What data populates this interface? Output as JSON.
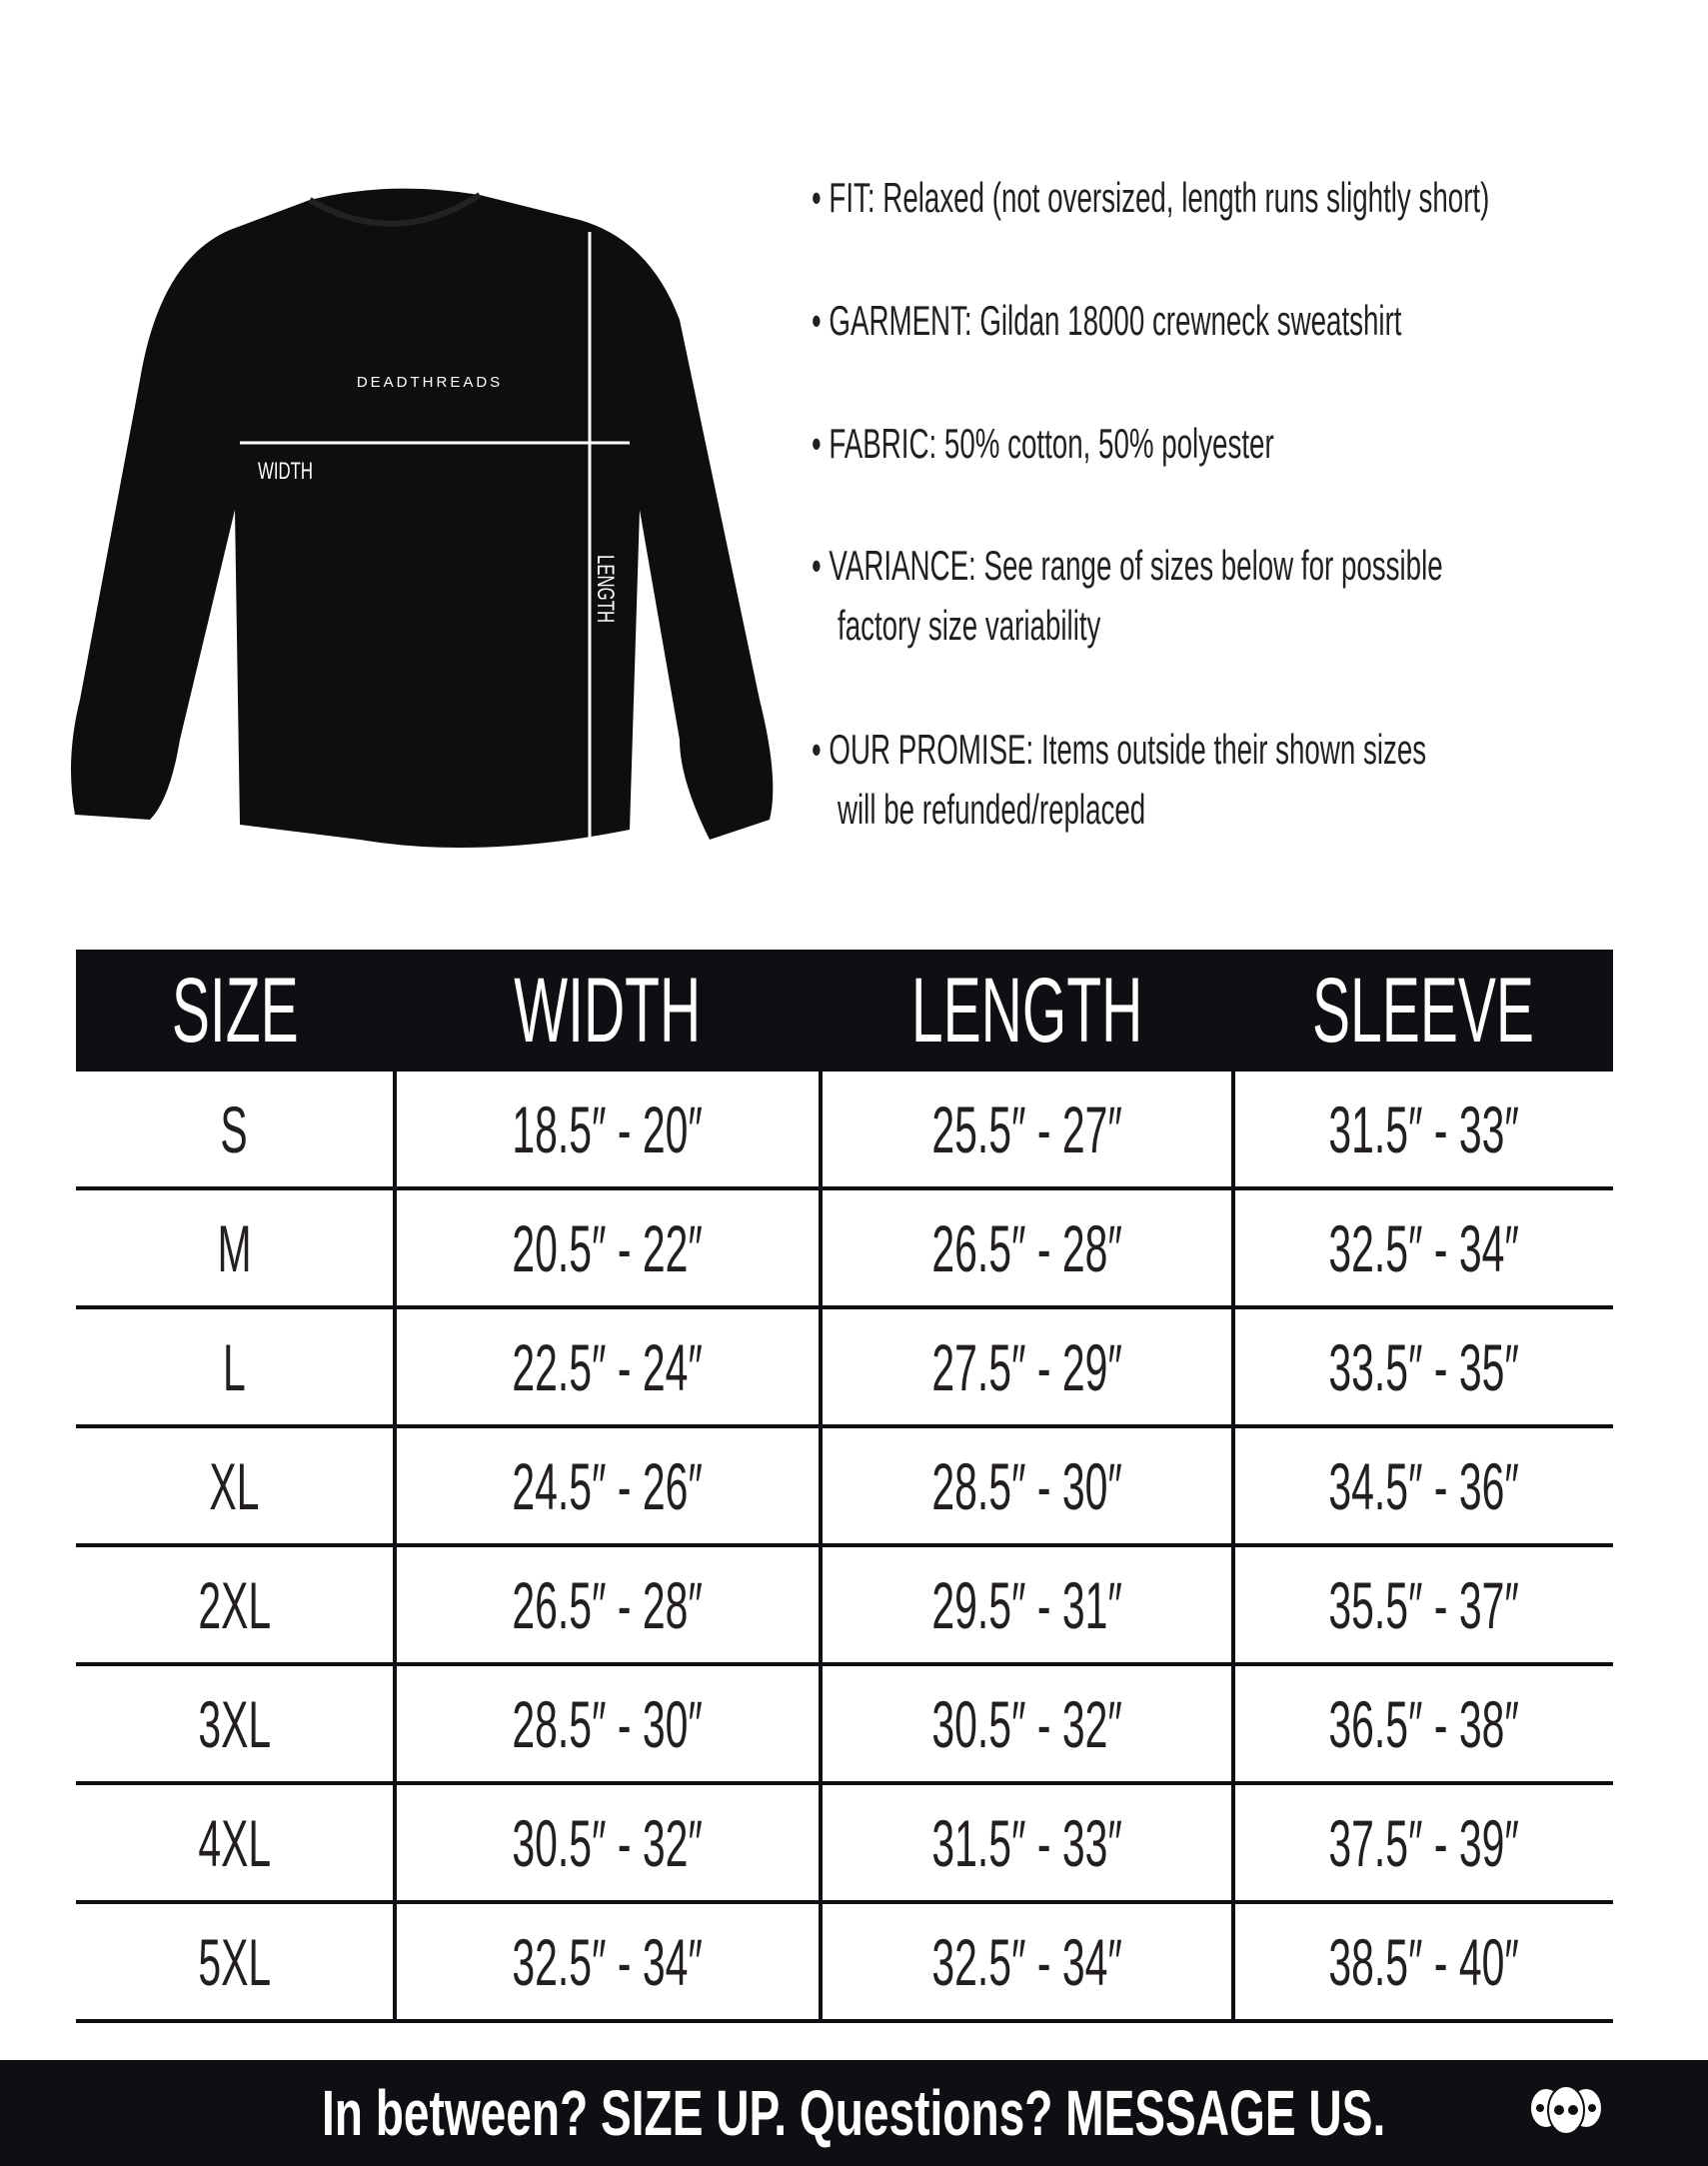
{
  "garment_image": {
    "brand_text": "DEADTHREADS",
    "width_label": "WIDTH",
    "length_label": "LENGTH"
  },
  "details": [
    {
      "lines": [
        "• FIT: Relaxed (not oversized, length runs slightly short)"
      ]
    },
    {
      "lines": [
        "• GARMENT: Gildan 18000 crewneck sweatshirt"
      ]
    },
    {
      "lines": [
        "• FABRIC: 50% cotton, 50% polyester"
      ]
    },
    {
      "lines": [
        "• VARIANCE: See range of sizes below for possible",
        "factory size variability"
      ]
    },
    {
      "lines": [
        "• OUR PROMISE: Items outside their shown sizes",
        "will be refunded/replaced"
      ]
    }
  ],
  "size_table": {
    "headers": [
      "SIZE",
      "WIDTH",
      "LENGTH",
      "SLEEVE"
    ],
    "rows": [
      [
        "S",
        "18.5″ - 20″",
        "25.5″ - 27″",
        "31.5″ - 33″"
      ],
      [
        "M",
        "20.5″ - 22″",
        "26.5″ - 28″",
        "32.5″ - 34″"
      ],
      [
        "L",
        "22.5″ - 24″",
        "27.5″ - 29″",
        "33.5″ - 35″"
      ],
      [
        "XL",
        "24.5″ - 26″",
        "28.5″ - 30″",
        "34.5″ - 36″"
      ],
      [
        "2XL",
        "26.5″ - 28″",
        "29.5″ - 31″",
        "35.5″ - 37″"
      ],
      [
        "3XL",
        "28.5″ - 30″",
        "30.5″ - 32″",
        "36.5″ - 38″"
      ],
      [
        "4XL",
        "30.5″ - 32″",
        "31.5″ - 33″",
        "37.5″ - 39″"
      ],
      [
        "5XL",
        "32.5″ - 34″",
        "32.5″ - 34″",
        "38.5″ - 40″"
      ]
    ]
  },
  "footer": {
    "text": "In between? SIZE UP. Questions? MESSAGE US.",
    "logo_icon": "three-skulls-icon"
  },
  "colors": {
    "dark": "#0e0f12",
    "text": "#231f20"
  }
}
